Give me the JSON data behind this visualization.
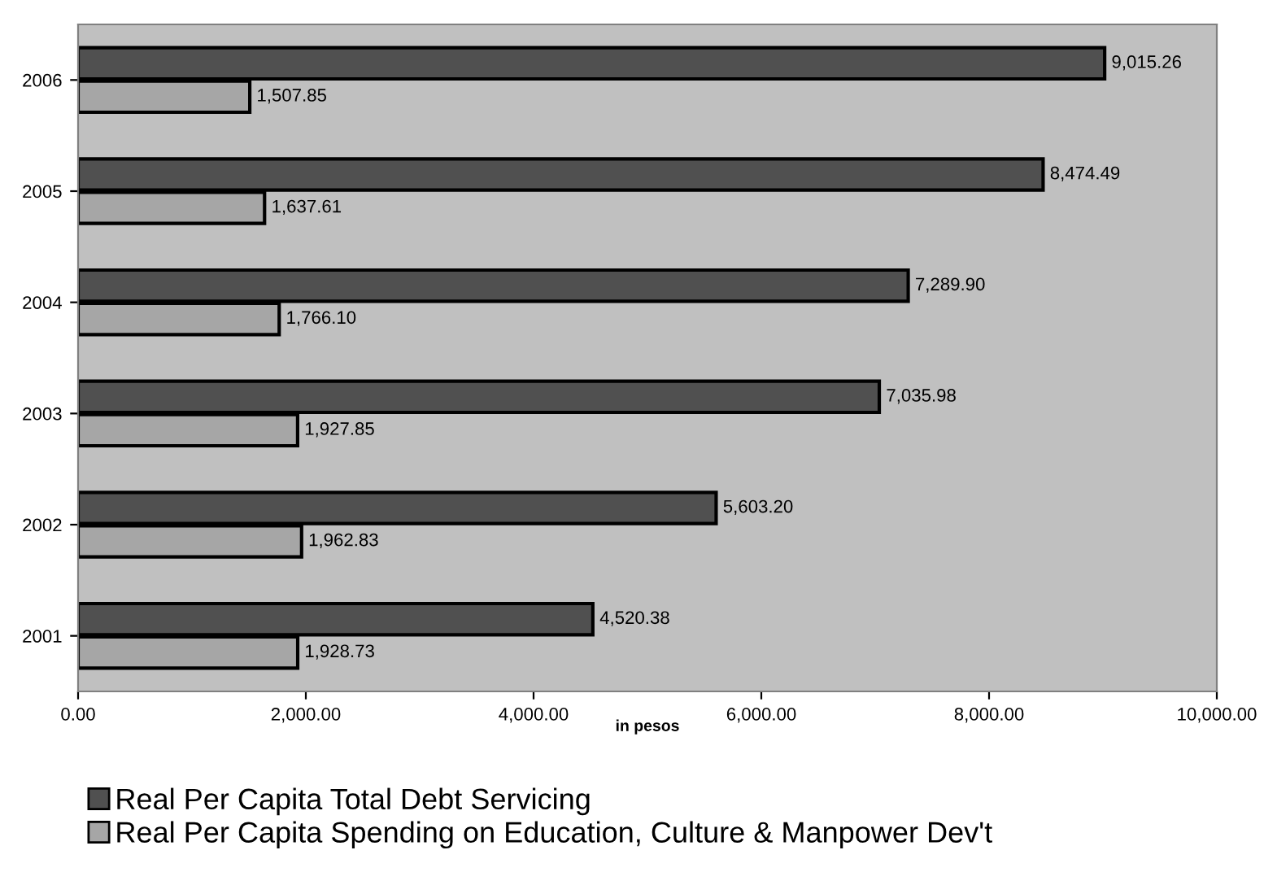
{
  "chart_data": {
    "type": "bar",
    "orientation": "horizontal",
    "xlabel": "in pesos",
    "categories": [
      "2006",
      "2005",
      "2004",
      "2003",
      "2002",
      "2001"
    ],
    "series": [
      {
        "name": "Real Per Capita Total Debt Servicing",
        "color": "#505050",
        "values": [
          9015.26,
          8474.49,
          7289.9,
          7035.98,
          5603.2,
          4520.38
        ],
        "value_labels": [
          "9,015.26",
          "8,474.49",
          "7,289.90",
          "7,035.98",
          "5,603.20",
          "4,520.38"
        ]
      },
      {
        "name": "Real Per Capita Spending on Education, Culture & Manpower Dev't",
        "color": "#a6a6a6",
        "values": [
          1507.85,
          1637.61,
          1766.1,
          1927.85,
          1962.83,
          1928.73
        ],
        "value_labels": [
          "1,507.85",
          "1,637.61",
          "1,766.10",
          "1,927.85",
          "1,962.83",
          "1,928.73"
        ]
      }
    ],
    "xlim": [
      0,
      10000
    ],
    "xticks": [
      {
        "value": 0,
        "label": "0.00"
      },
      {
        "value": 2000,
        "label": "2,000.00"
      },
      {
        "value": 4000,
        "label": "4,000.00"
      },
      {
        "value": 6000,
        "label": "6,000.00"
      },
      {
        "value": 8000,
        "label": "8,000.00"
      },
      {
        "value": 10000,
        "label": "10,000.00"
      }
    ],
    "grid": false,
    "legend": "bottom"
  }
}
